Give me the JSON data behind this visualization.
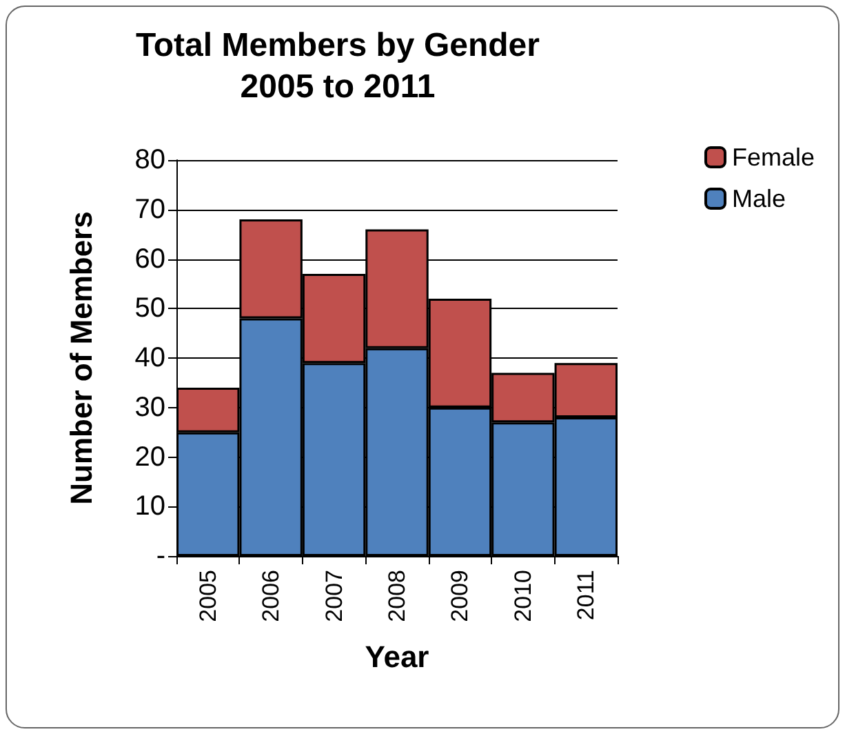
{
  "chart_data": {
    "type": "bar",
    "title": "Total Members by Gender\n2005 to 2011",
    "xlabel": "Year",
    "ylabel": "Number of Members",
    "categories": [
      "2005",
      "2006",
      "2007",
      "2008",
      "2009",
      "2010",
      "2011"
    ],
    "series": [
      {
        "name": "Male",
        "color": "#4f81bd",
        "values": [
          25,
          48,
          39,
          42,
          30,
          27,
          28
        ]
      },
      {
        "name": "Female",
        "color": "#c0504d",
        "values": [
          9,
          20,
          18,
          24,
          22,
          10,
          11
        ]
      }
    ],
    "stacked": true,
    "ylim": [
      0,
      80
    ],
    "yticks": [
      {
        "value": 0,
        "label": "-"
      },
      10,
      20,
      30,
      40,
      50,
      60,
      70,
      80
    ],
    "grid": "y",
    "legend": "top right"
  }
}
